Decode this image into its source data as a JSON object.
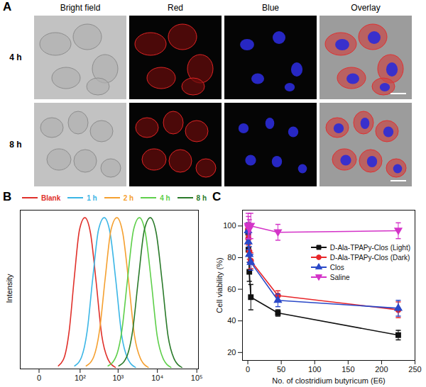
{
  "panel_a": {
    "label": "A",
    "columns": [
      "Bright field",
      "Red",
      "Blue",
      "Overlay"
    ],
    "rows": [
      "4 h",
      "8 h"
    ]
  },
  "chart_data": [
    {
      "panel": "B",
      "type": "line",
      "y_label": "Intensity",
      "log": "x",
      "xlim": [
        -20,
        110000
      ],
      "xticks": [
        0,
        {
          "value": 100,
          "label": "10²"
        },
        {
          "value": 1000,
          "label": "10³"
        },
        {
          "value": 10000,
          "label": "10⁴"
        },
        {
          "value": 100000,
          "label": "10⁵"
        }
      ],
      "ylim": [
        0,
        105
      ],
      "tick_labels": "x",
      "legend": "top",
      "series": [
        {
          "name": "Blank",
          "color": "#e0302a",
          "x": [
            21,
            34,
            48,
            68,
            96,
            135,
            191,
            269,
            380,
            537,
            852
          ],
          "values": [
            2,
            8,
            25,
            60,
            92,
            100,
            90,
            58,
            22,
            7,
            1
          ]
        },
        {
          "name": "1 h",
          "color": "#3bb6e6",
          "x": [
            70,
            110,
            156,
            220,
            312,
            440,
            622,
            878,
            1240,
            1751,
            2776
          ],
          "values": [
            2,
            8,
            25,
            60,
            92,
            100,
            90,
            58,
            22,
            7,
            1
          ]
        },
        {
          "name": "2 h",
          "color": "#f5a030",
          "x": [
            147,
            233,
            330,
            466,
            658,
            930,
            1314,
            1855,
            2621,
            3702,
            5868
          ],
          "values": [
            2,
            8,
            25,
            60,
            92,
            100,
            90,
            58,
            22,
            7,
            1
          ]
        },
        {
          "name": "4 h",
          "color": "#5ecf4a",
          "x": [
            553,
            879,
            1243,
            1754,
            2478,
            3500,
            4946,
            6983,
            9863,
            13930,
            22085
          ],
          "values": [
            2,
            8,
            25,
            60,
            92,
            100,
            90,
            58,
            22,
            7,
            1
          ]
        },
        {
          "name": "8 h",
          "color": "#2a7a2a",
          "x": [
            1043,
            1657,
            2343,
            3308,
            4673,
            6600,
            9326,
            13167,
            18599,
            26268,
            41646
          ],
          "values": [
            2,
            8,
            25,
            60,
            92,
            100,
            90,
            58,
            22,
            7,
            1
          ]
        }
      ]
    },
    {
      "panel": "C",
      "type": "line",
      "x_label": "No. of clostridium butyricum (E6)",
      "y_label": "Cell viability (%)",
      "xlim": [
        -8,
        250
      ],
      "xticks": [
        0,
        50,
        100,
        150,
        200,
        250
      ],
      "ylim": [
        15,
        110
      ],
      "yticks": [
        20,
        40,
        60,
        80,
        100
      ],
      "legend": "right",
      "x": [
        0.45,
        0.9,
        2.25,
        4.5,
        45,
        225
      ],
      "series": [
        {
          "name": "D-Ala-TPAPy-Clos (Light)",
          "color": "#111111",
          "marker": "square",
          "values": [
            96,
            85,
            71,
            55,
            45,
            31
          ],
          "errors": [
            3,
            4,
            6,
            8,
            2,
            3
          ]
        },
        {
          "name": "D-Ala-TPAPy-Clos (Dark)",
          "color": "#e8262a",
          "marker": "circle",
          "values": [
            98,
            92,
            84,
            78,
            56,
            47
          ],
          "errors": [
            4,
            4,
            5,
            5,
            3,
            5
          ]
        },
        {
          "name": "Clos",
          "color": "#2a48c8",
          "marker": "triangle",
          "values": [
            97,
            90,
            82,
            77,
            53,
            48
          ],
          "errors": [
            5,
            5,
            5,
            5,
            4,
            5
          ]
        },
        {
          "name": "Saline",
          "color": "#d433c8",
          "marker": "triangle-down",
          "values": [
            100,
            99,
            98,
            100,
            96,
            97
          ],
          "errors": [
            8,
            7,
            6,
            8,
            5,
            5
          ]
        }
      ]
    }
  ]
}
